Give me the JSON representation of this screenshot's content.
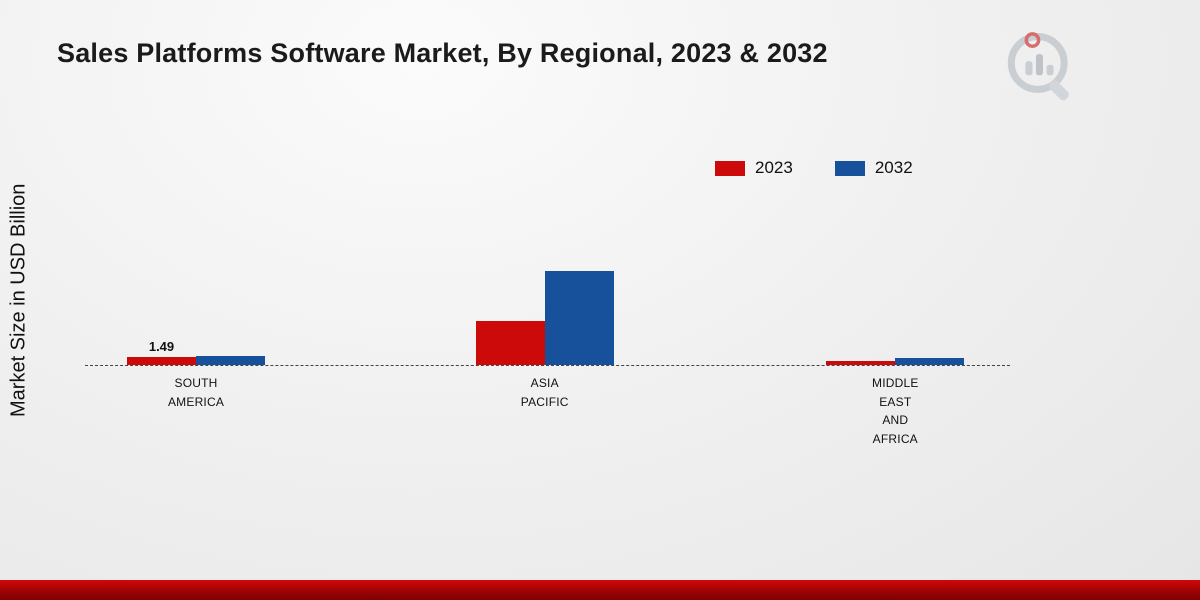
{
  "page": {
    "title": "Sales Platforms Software Market, By Regional, 2023 & 2032",
    "y_axis_label": "Market Size in USD Billion"
  },
  "chart_data": {
    "type": "bar",
    "title": "Sales Platforms Software Market, By Regional, 2023 & 2032",
    "ylabel": "Market Size in USD Billion",
    "categories": [
      "SOUTH AMERICA",
      "ASIA PACIFIC",
      "MIDDLE EAST AND AFRICA"
    ],
    "series": [
      {
        "name": "2023",
        "color": "#cc0a0a",
        "values": [
          1.49,
          8.2,
          0.7
        ],
        "value_labels": [
          "1.49",
          "",
          ""
        ]
      },
      {
        "name": "2032",
        "color": "#17519b",
        "values": [
          1.68,
          17.5,
          1.3
        ],
        "value_labels": [
          "",
          "",
          ""
        ]
      }
    ],
    "ylim": [
      0,
      18
    ],
    "grid": false,
    "legend_position": "top-right",
    "baseline_style": "dashed"
  },
  "branding": {
    "logo_name": "market-research-logo"
  },
  "colors": {
    "accent_red": "#cc0a0a",
    "accent_blue": "#17519b",
    "footer_band": "#a50404"
  }
}
